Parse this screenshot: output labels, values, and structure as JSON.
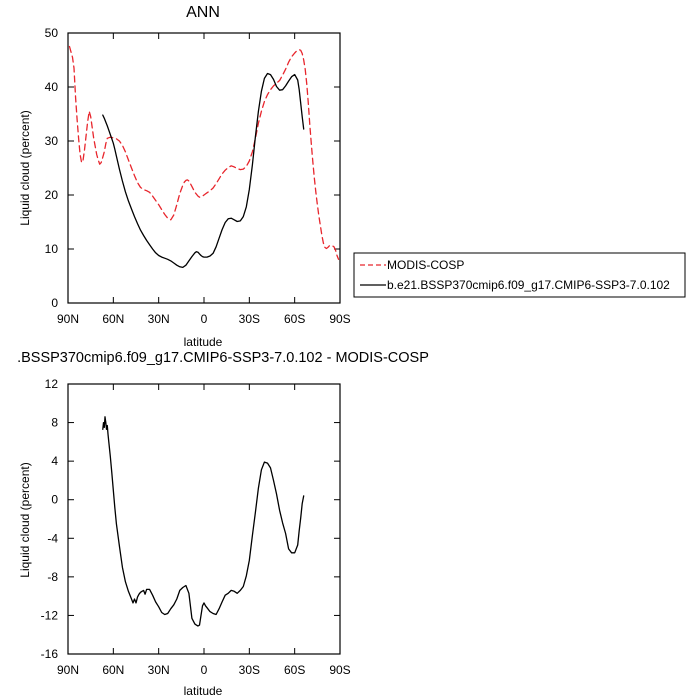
{
  "chart_data": [
    {
      "type": "line",
      "title": "ANN",
      "xlabel": "latitude",
      "ylabel": "Liquid cloud (percent)",
      "xlim": [
        90,
        -90
      ],
      "ylim": [
        0,
        50
      ],
      "x_ticks": [
        90,
        60,
        30,
        0,
        -30,
        -60,
        -90
      ],
      "x_tick_labels": [
        "90N",
        "60N",
        "30N",
        "0",
        "30S",
        "60S",
        "90S"
      ],
      "y_ticks": [
        0,
        10,
        20,
        30,
        40,
        50
      ],
      "y_tick_labels": [
        "0",
        "10",
        "20",
        "30",
        "40",
        "50"
      ],
      "legend_position": "right",
      "series": [
        {
          "name": "MODIS-COSP",
          "style": "dashed",
          "color": "#e8262d",
          "x": [
            89,
            87,
            86,
            85,
            84,
            83,
            82,
            81,
            80,
            79,
            78,
            77,
            76,
            75,
            74,
            73,
            72,
            71,
            70,
            69,
            68,
            67,
            66,
            65,
            64,
            62,
            60,
            58,
            56,
            54,
            52,
            50,
            48,
            46,
            44,
            42,
            40,
            38,
            36,
            34,
            32,
            30,
            28,
            26,
            24,
            22,
            20,
            18,
            16,
            14,
            13,
            12,
            11,
            10,
            8,
            6,
            4,
            3,
            2,
            1,
            0,
            -1,
            -2,
            -3,
            -4,
            -6,
            -8,
            -10,
            -12,
            -14,
            -16,
            -18,
            -20,
            -22,
            -24,
            -26,
            -28,
            -30,
            -32,
            -34,
            -36,
            -38,
            -40,
            -42,
            -44,
            -46,
            -48,
            -50,
            -52,
            -54,
            -56,
            -58,
            -60,
            -61,
            -62,
            -63,
            -64,
            -65,
            -66,
            -67,
            -68,
            -69,
            -70,
            -71,
            -72,
            -73,
            -74,
            -75,
            -76,
            -77,
            -78,
            -79,
            -80,
            -81,
            -82,
            -83,
            -84,
            -85,
            -86,
            -87,
            -88,
            -89
          ],
          "y": [
            47.5,
            45.5,
            43.5,
            38,
            34,
            30.5,
            27.5,
            26,
            26.5,
            28.5,
            31,
            33.5,
            35.5,
            34.5,
            32.5,
            30.5,
            29,
            27.5,
            26.5,
            25.7,
            26,
            27,
            28,
            29.5,
            30.5,
            30.7,
            30.6,
            30.4,
            30,
            29.2,
            28,
            26.5,
            25,
            23.6,
            22.3,
            21.4,
            21,
            20.8,
            20.5,
            19.8,
            19,
            18.2,
            17.3,
            16.4,
            15.7,
            15.4,
            16.3,
            18.2,
            20.3,
            21.8,
            22.4,
            22.7,
            22.8,
            22.6,
            21.6,
            20.5,
            19.8,
            19.6,
            19.7,
            19.8,
            20,
            20.2,
            20.4,
            20.6,
            20.8,
            21.3,
            22.1,
            23,
            23.9,
            24.6,
            25.1,
            25.4,
            25.2,
            24.9,
            24.7,
            24.8,
            25.3,
            26.3,
            28,
            30.5,
            33.3,
            35.5,
            37.3,
            38.6,
            39.5,
            40.2,
            40.7,
            41.2,
            42.2,
            43.3,
            44.6,
            45.6,
            46.3,
            46.6,
            46.8,
            46.9,
            46.8,
            46.2,
            45,
            43.3,
            40.5,
            37,
            33,
            29.5,
            26.2,
            23.2,
            20.6,
            18.3,
            16.2,
            14.3,
            12.5,
            11.1,
            10.3,
            10.1,
            10.3,
            10.6,
            10.7,
            10.6,
            10.4,
            9.8,
            8.8,
            8.1
          ]
        },
        {
          "name": "b.e21.BSSP370cmip6.f09_g17.CMIP6-SSP3-7.0.102",
          "style": "solid",
          "color": "#000000",
          "x": [
            67,
            66,
            65,
            64,
            63,
            62,
            61,
            60,
            59,
            58,
            56,
            54,
            52,
            50,
            48,
            46,
            44,
            42,
            40,
            38,
            36,
            34,
            32,
            30,
            28,
            26,
            24,
            22,
            20,
            18,
            16,
            14,
            12,
            10,
            8,
            6,
            5,
            4,
            3,
            2,
            1,
            0,
            -1,
            -2,
            -4,
            -6,
            -8,
            -10,
            -12,
            -14,
            -16,
            -18,
            -20,
            -22,
            -24,
            -26,
            -28,
            -30,
            -32,
            -34,
            -36,
            -38,
            -40,
            -42,
            -44,
            -46,
            -48,
            -50,
            -52,
            -54,
            -56,
            -58,
            -60,
            -62,
            -63,
            -64,
            -65,
            -66
          ],
          "y": [
            34.8,
            34.2,
            33.5,
            32.8,
            32,
            31.2,
            30.4,
            29.6,
            28.5,
            27.2,
            24.8,
            22.6,
            20.6,
            18.9,
            17.4,
            16,
            14.7,
            13.5,
            12.5,
            11.6,
            10.8,
            10,
            9.3,
            8.8,
            8.5,
            8.3,
            8.1,
            7.8,
            7.4,
            7,
            6.7,
            6.6,
            7,
            7.8,
            8.6,
            9.3,
            9.5,
            9.4,
            9.1,
            8.8,
            8.6,
            8.5,
            8.5,
            8.5,
            8.7,
            9.2,
            10.4,
            12,
            13.6,
            14.9,
            15.6,
            15.7,
            15.4,
            15.1,
            15.2,
            16,
            17.8,
            21,
            25.6,
            30.8,
            35.5,
            39.2,
            41.6,
            42.5,
            42.3,
            41.4,
            40.1,
            39.4,
            39.5,
            40.2,
            41.1,
            41.9,
            42.3,
            41.3,
            39.5,
            37,
            34.5,
            32.2
          ]
        }
      ]
    },
    {
      "type": "line",
      "title": ".BSSP370cmip6.f09_g17.CMIP6-SSP3-7.0.102 - MODIS-COSP",
      "xlabel": "latitude",
      "ylabel": "Liquid cloud (percent)",
      "xlim": [
        90,
        -90
      ],
      "ylim": [
        -16,
        12
      ],
      "x_ticks": [
        90,
        60,
        30,
        0,
        -30,
        -60,
        -90
      ],
      "x_tick_labels": [
        "90N",
        "60N",
        "30N",
        "0",
        "30S",
        "60S",
        "90S"
      ],
      "y_ticks": [
        -16,
        -12,
        -8,
        -4,
        0,
        4,
        8,
        12
      ],
      "y_tick_labels": [
        "-16",
        "-12",
        "-8",
        "-4",
        "0",
        "4",
        "8",
        "12"
      ],
      "series": [
        {
          "style": "solid",
          "color": "#000000",
          "x": [
            67,
            66.5,
            66,
            65.5,
            65,
            64.5,
            64,
            63.5,
            63,
            62,
            61,
            60,
            59,
            58,
            56,
            54,
            52,
            50,
            48,
            47,
            46,
            45,
            44,
            43,
            42,
            41,
            40,
            39,
            38,
            36,
            34,
            32,
            30,
            28,
            26,
            24,
            22,
            20,
            18,
            16,
            14,
            12,
            10,
            8,
            6,
            5,
            4,
            3,
            2,
            1,
            0,
            -1,
            -2,
            -4,
            -6,
            -8,
            -10,
            -12,
            -14,
            -16,
            -18,
            -20,
            -22,
            -24,
            -26,
            -28,
            -30,
            -32,
            -34,
            -36,
            -38,
            -40,
            -42,
            -44,
            -46,
            -48,
            -50,
            -52,
            -54,
            -56,
            -58,
            -60,
            -62,
            -63,
            -64,
            -65,
            -66
          ],
          "y": [
            7.3,
            8,
            7.5,
            8.6,
            8,
            7.3,
            7.7,
            6.8,
            6,
            4.5,
            2.8,
            1,
            -0.8,
            -2.5,
            -4.8,
            -7,
            -8.5,
            -9.5,
            -10.3,
            -10.7,
            -10.3,
            -10.7,
            -10.1,
            -9.8,
            -9.6,
            -9.5,
            -9.4,
            -9.8,
            -9.3,
            -9.3,
            -9.9,
            -10.6,
            -11.1,
            -11.7,
            -11.9,
            -11.8,
            -11.3,
            -10.9,
            -10.3,
            -9.4,
            -9.1,
            -8.9,
            -9.7,
            -12.3,
            -12.9,
            -13,
            -13.1,
            -13,
            -12,
            -11,
            -10.7,
            -11,
            -11.2,
            -11.6,
            -11.8,
            -11.9,
            -11.3,
            -10.6,
            -9.9,
            -9.7,
            -9.4,
            -9.5,
            -9.7,
            -9.4,
            -9,
            -7.9,
            -6.3,
            -3.7,
            -1.3,
            1.2,
            3.1,
            3.9,
            3.8,
            3.3,
            2,
            0.6,
            -1.1,
            -2.4,
            -3.5,
            -5.1,
            -5.5,
            -5.5,
            -4.7,
            -3.2,
            -1.9,
            -0.4,
            0.4
          ]
        }
      ]
    }
  ],
  "legend": {
    "entries": [
      {
        "label": "MODIS-COSP",
        "style": "dashed",
        "color": "#e8262d"
      },
      {
        "label": "b.e21.BSSP370cmip6.f09_g17.CMIP6-SSP3-7.0.102",
        "style": "solid",
        "color": "#000000"
      }
    ]
  }
}
